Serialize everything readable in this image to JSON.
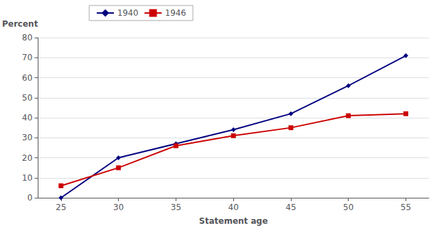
{
  "chart_data": {
    "type": "line",
    "xlabel": "Statement age",
    "ylabel": "Percent",
    "x": [
      25,
      30,
      35,
      40,
      45,
      50,
      55
    ],
    "series": [
      {
        "name": "1940",
        "color": "#000080",
        "marker": "diamond",
        "values": [
          0,
          20,
          27,
          34,
          42,
          56,
          71
        ]
      },
      {
        "name": "1946",
        "color": "#CC0000",
        "marker": "square",
        "values": [
          6,
          15,
          26,
          31,
          35,
          41,
          42
        ]
      }
    ],
    "xlim": [
      23,
      57
    ],
    "xticks": [
      25,
      30,
      35,
      40,
      45,
      50,
      55
    ],
    "ylim": [
      0,
      80
    ],
    "yticks": [
      0,
      10,
      20,
      30,
      40,
      50,
      60,
      70,
      80
    ],
    "grid": true,
    "legend": "upper left"
  }
}
